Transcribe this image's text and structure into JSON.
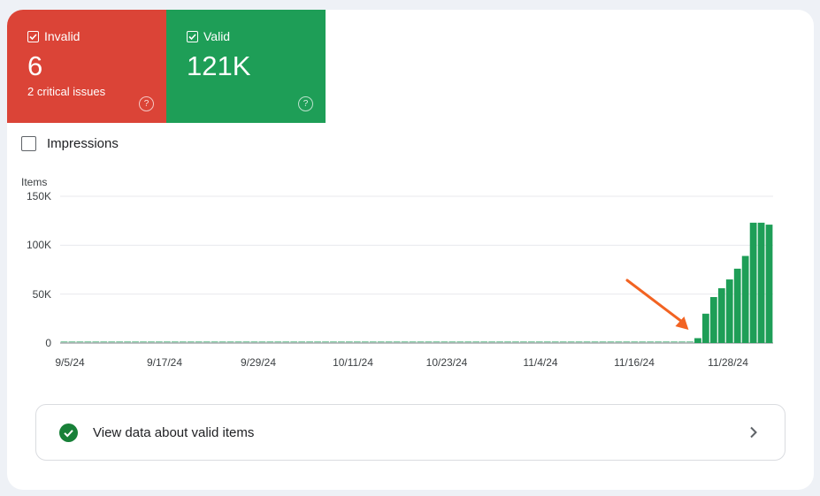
{
  "tiles": {
    "invalid": {
      "label": "Invalid",
      "value": "6",
      "subtitle": "2 critical issues",
      "help": "?",
      "color": "#db4437"
    },
    "valid": {
      "label": "Valid",
      "value": "121K",
      "help": "?",
      "color": "#1e9e57"
    }
  },
  "impressions": {
    "label": "Impressions",
    "checked": false
  },
  "chart_data": {
    "type": "bar",
    "ylabel": "Items",
    "yticks": [
      "150K",
      "100K",
      "50K",
      "0"
    ],
    "ylim": [
      0,
      150000
    ],
    "xticks": [
      "9/5/24",
      "9/17/24",
      "9/29/24",
      "10/11/24",
      "10/23/24",
      "11/4/24",
      "11/16/24",
      "11/28/24"
    ],
    "start_date": "9/5/24",
    "series": [
      {
        "color": "#1e9e57",
        "values": [
          0,
          0,
          0,
          0,
          0,
          0,
          0,
          0,
          0,
          0,
          0,
          0,
          0,
          0,
          0,
          0,
          0,
          0,
          0,
          0,
          0,
          0,
          0,
          0,
          0,
          0,
          0,
          0,
          0,
          0,
          0,
          0,
          0,
          0,
          0,
          0,
          0,
          0,
          0,
          0,
          0,
          0,
          0,
          0,
          0,
          0,
          0,
          0,
          0,
          0,
          0,
          0,
          0,
          0,
          0,
          0,
          0,
          0,
          0,
          0,
          0,
          0,
          0,
          0,
          0,
          0,
          0,
          0,
          0,
          0,
          0,
          0,
          0,
          0,
          0,
          0,
          0,
          0,
          0,
          0,
          5000,
          30000,
          47000,
          56000,
          65000,
          76000,
          89000,
          123000,
          123000,
          121000
        ]
      }
    ],
    "grid": true,
    "annotation": "orange arrow pointing to first nonzero bar"
  },
  "footer_link": {
    "label": "View data about valid items"
  },
  "colors": {
    "accent_green": "#1e9e57",
    "accent_red": "#db4437",
    "arrow": "#f26322"
  }
}
